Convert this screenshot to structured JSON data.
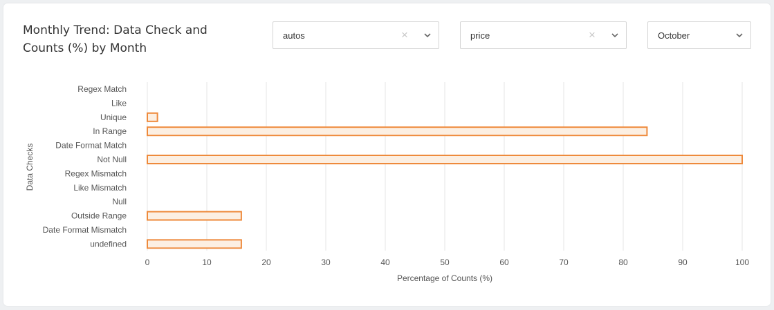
{
  "header": {
    "title": "Monthly Trend: Data Check and Counts (%) by Month"
  },
  "filters": {
    "dataset": {
      "value": "autos",
      "clear_icon": "close-icon",
      "dropdown_icon": "chevron-down-icon"
    },
    "column": {
      "value": "price",
      "clear_icon": "close-icon",
      "dropdown_icon": "chevron-down-icon"
    },
    "month": {
      "value": "October",
      "dropdown_icon": "chevron-down-icon"
    }
  },
  "chart_data": {
    "type": "bar",
    "orientation": "horizontal",
    "categories": [
      "Regex Match",
      "Like",
      "Unique",
      "In Range",
      "Date Format Match",
      "Not Null",
      "Regex Mismatch",
      "Like Mismatch",
      "Null",
      "Outside Range",
      "Date Format Mismatch",
      "undefined"
    ],
    "values": [
      0,
      0,
      1.7,
      84,
      0,
      100,
      0,
      0,
      0,
      15.8,
      0,
      15.8
    ],
    "xlabel": "Percentage of Counts (%)",
    "ylabel": "Data Checks",
    "xlim": [
      0,
      100
    ],
    "xticks": [
      0,
      10,
      20,
      30,
      40,
      50,
      60,
      70,
      80,
      90,
      100
    ],
    "grid": true,
    "colors": {
      "bar_fill": "#fcefe2",
      "bar_stroke": "#ee8a3c",
      "grid": "#e6e6e6",
      "tick_label": "#555555"
    }
  }
}
